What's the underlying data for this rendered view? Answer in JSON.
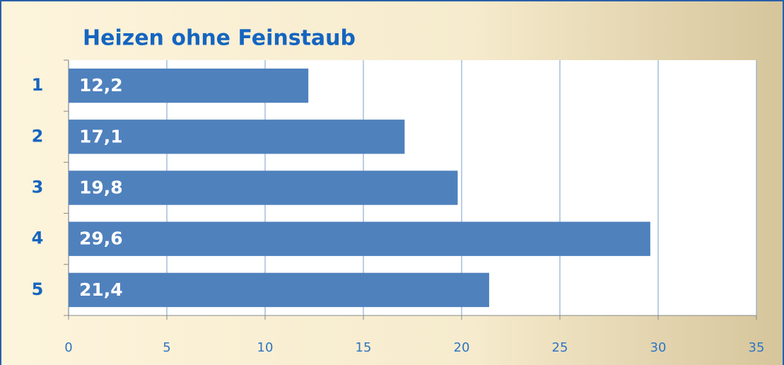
{
  "chart_data": {
    "type": "bar",
    "orientation": "horizontal",
    "title": "Heizen ohne Feinstaub",
    "categories": [
      "1",
      "2",
      "3",
      "4",
      "5"
    ],
    "values": [
      12.2,
      17.1,
      19.8,
      29.6,
      21.4
    ],
    "value_labels": [
      "12,2",
      "17,1",
      "19,8",
      "29,6",
      "21,4"
    ],
    "color": "#4f81bd",
    "xlim": [
      0,
      35
    ],
    "xticks": [
      0,
      5,
      10,
      15,
      20,
      25,
      30,
      35
    ],
    "grid": true
  }
}
